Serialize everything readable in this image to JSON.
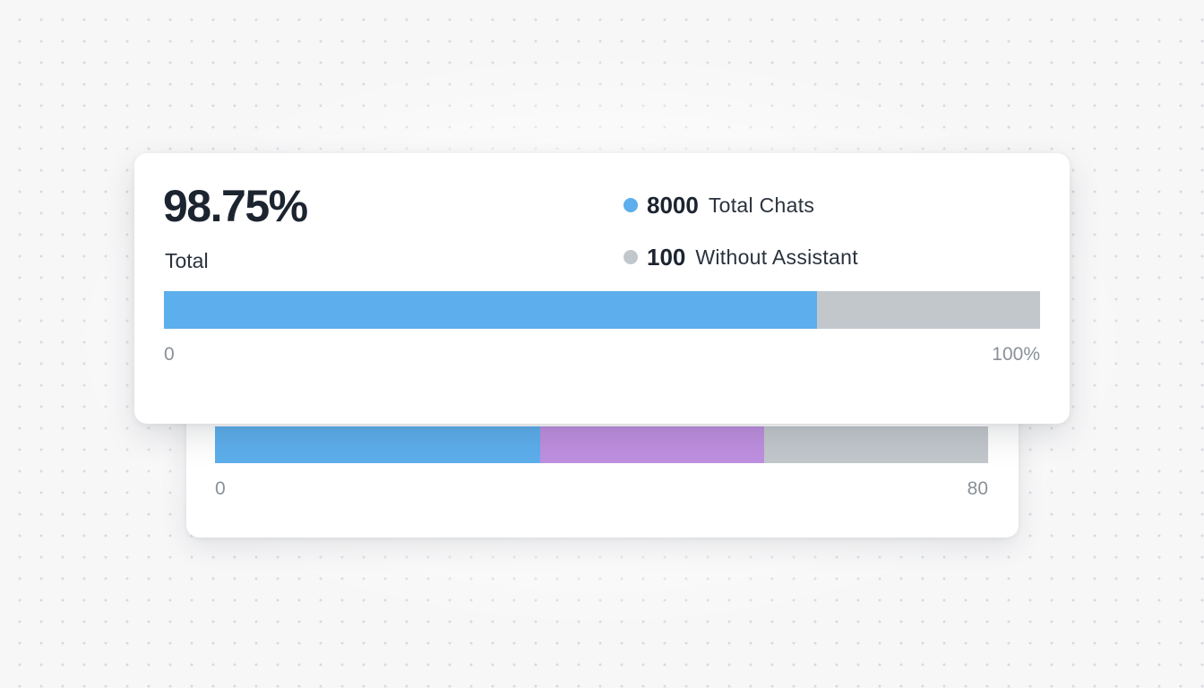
{
  "colors": {
    "blue": "#5daeec",
    "purple": "#be8fdf",
    "gray": "#c2c7cc"
  },
  "main_card": {
    "value": "98.75%",
    "label": "Total",
    "legend": [
      {
        "number": "8000",
        "label": "Total Chats",
        "color": "#5daeec",
        "icon": "dot-blue-icon"
      },
      {
        "number": "100",
        "label": "Without Assistant",
        "color": "#c2c7cc",
        "icon": "dot-gray-icon"
      }
    ],
    "bar": {
      "segments": [
        {
          "fraction": 0.745,
          "color": "#5daeec"
        },
        {
          "fraction": 0.255,
          "color": "#c2c7cc"
        }
      ]
    },
    "axis": {
      "min_label": "0",
      "max_label": "100%"
    }
  },
  "back_card": {
    "bar": {
      "segments": [
        {
          "fraction": 0.421,
          "color": "#5daeec"
        },
        {
          "fraction": 0.289,
          "color": "#be8fdf"
        },
        {
          "fraction": 0.29,
          "color": "#c2c7cc"
        }
      ]
    },
    "axis": {
      "min_label": "0",
      "max_label": "80"
    }
  }
}
